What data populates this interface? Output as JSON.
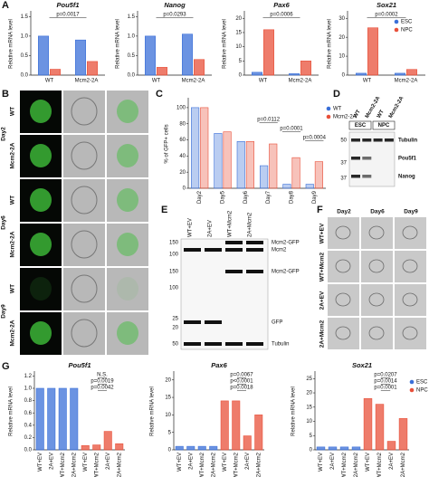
{
  "panels": [
    "A",
    "B",
    "C",
    "D",
    "E",
    "F",
    "G"
  ],
  "chart_data": [
    {
      "type": "bar",
      "title": "Pou5f1",
      "ylabel": "Relative mRNA level",
      "categories": [
        "WT",
        "Mcm2-2A"
      ],
      "series": [
        {
          "color": "#3a6fd8",
          "values": [
            1.0,
            0.9
          ]
        },
        {
          "color": "#e8503a",
          "values": [
            0.15,
            0.35
          ]
        }
      ],
      "ylim": [
        0,
        1.6
      ],
      "yticks": [
        {
          "value": 0,
          "label": "0.0"
        },
        0.5,
        {
          "value": 1,
          "label": "1.0"
        },
        1.5
      ],
      "annotations": [
        "p=0.0017"
      ]
    },
    {
      "type": "bar",
      "title": "Nanog",
      "ylabel": "Relative mRNA level",
      "categories": [
        "WT",
        "Mcm2-2A"
      ],
      "series": [
        {
          "color": "#3a6fd8",
          "values": [
            1.0,
            1.05
          ]
        },
        {
          "color": "#e8503a",
          "values": [
            0.2,
            0.4
          ]
        }
      ],
      "ylim": [
        0,
        1.6
      ],
      "yticks": [
        {
          "value": 0,
          "label": "0.0"
        },
        0.5,
        {
          "value": 1,
          "label": "1.0"
        },
        1.5
      ],
      "annotations": [
        "p=0.0293"
      ]
    },
    {
      "type": "bar",
      "title": "Pax6",
      "ylabel": "Relative mRNA level",
      "categories": [
        "WT",
        "Mcm2-2A"
      ],
      "series": [
        {
          "color": "#3a6fd8",
          "values": [
            1,
            0.5
          ]
        },
        {
          "color": "#e8503a",
          "values": [
            16,
            5
          ]
        }
      ],
      "ylim": [
        0,
        22
      ],
      "yticks": [
        0,
        5,
        10,
        15,
        20
      ],
      "annotations": [
        "p=0.0006"
      ]
    },
    {
      "type": "bar",
      "title": "Sox21",
      "ylabel": "Relative mRNA level",
      "categories": [
        "WT",
        "Mcm2-2A"
      ],
      "series": [
        {
          "name": "ESC",
          "color": "#3a6fd8",
          "values": [
            1,
            1
          ]
        },
        {
          "name": "NPC",
          "color": "#e8503a",
          "values": [
            25,
            3
          ]
        }
      ],
      "ylim": [
        0,
        33
      ],
      "yticks": [
        0,
        10,
        20,
        30
      ],
      "annotations": [
        "p=0.0002"
      ]
    },
    {
      "type": "bar",
      "ylabel": "% of GFP+ cells",
      "categories": [
        "Day2",
        "Day5",
        "Day6",
        "Day7",
        "Day8",
        "Day9"
      ],
      "series": [
        {
          "name": "WT",
          "color": "#3a6fd8",
          "values": [
            100,
            68,
            58,
            28,
            5,
            5
          ]
        },
        {
          "name": "Mcm2-2A",
          "color": "#e8503a",
          "values": [
            100,
            70,
            58,
            55,
            38,
            33
          ]
        }
      ],
      "ylim": [
        0,
        110
      ],
      "yticks": [
        0,
        20,
        40,
        60,
        80,
        100
      ],
      "annotations": [
        "p=0.0112",
        "p=0.0001",
        "p=0.0004"
      ]
    },
    {
      "type": "bar",
      "title": "Pou5f1",
      "ylabel": "Relative mRNA level",
      "categories": [
        "WT+EV",
        "2A+EV",
        "WT+Mcm2",
        "2A+Mcm2",
        "WT+EV",
        "WT+Mcm2",
        "2A+EV",
        "2A+Mcm2"
      ],
      "series": [
        {
          "color": "#3a6fd8",
          "values": [
            1,
            1,
            1,
            1,
            null,
            null,
            null,
            null
          ]
        },
        {
          "color": "#e8503a",
          "values": [
            null,
            null,
            null,
            null,
            0.07,
            0.08,
            0.3,
            0.1
          ]
        }
      ],
      "ylim": [
        0,
        1.25
      ],
      "yticks": [
        {
          "value": 0,
          "label": "0.0"
        },
        0.2,
        0.4,
        0.6,
        0.8,
        {
          "value": 1,
          "label": "1.0"
        },
        1.2
      ],
      "annotations": [
        "N.S.",
        "p=0.0019",
        "p=0.0042"
      ]
    },
    {
      "type": "bar",
      "title": "Pax6",
      "ylabel": "Relative mRNA level",
      "categories": [
        "WT+EV",
        "2A+EV",
        "WT+Mcm2",
        "2A+Mcm2",
        "WT+EV",
        "WT+Mcm2",
        "2A+EV",
        "2A+Mcm2"
      ],
      "series": [
        {
          "color": "#3a6fd8",
          "values": [
            1,
            1,
            1,
            1,
            null,
            null,
            null,
            null
          ]
        },
        {
          "color": "#e8503a",
          "values": [
            null,
            null,
            null,
            null,
            14,
            14,
            4,
            10
          ]
        }
      ],
      "ylim": [
        0,
        22
      ],
      "yticks": [
        0,
        5,
        10,
        15,
        20
      ],
      "annotations": [
        "p=0.0067",
        "p<0.0001",
        "p=0.0018"
      ]
    },
    {
      "type": "bar",
      "title": "Sox21",
      "ylabel": "Relative mRNA level",
      "categories": [
        "WT+EV",
        "2A+EV",
        "WT+Mcm2",
        "2A+Mcm2",
        "WT+EV",
        "WT+Mcm2",
        "2A+EV",
        "2A+Mcm2"
      ],
      "series": [
        {
          "name": "ESC",
          "color": "#3a6fd8",
          "values": [
            1,
            1,
            1,
            1,
            null,
            null,
            null,
            null
          ]
        },
        {
          "name": "NPC",
          "color": "#e8503a",
          "values": [
            null,
            null,
            null,
            null,
            18,
            16,
            3,
            11
          ]
        }
      ],
      "ylim": [
        0,
        27
      ],
      "yticks": [
        0,
        5,
        10,
        15,
        20,
        25
      ],
      "annotations": [
        "p=0.0207",
        "p=0.0014",
        "p=0.0001"
      ]
    }
  ],
  "panel_b": {
    "groups": [
      {
        "day": "Day2",
        "rows": [
          "WT",
          "Mcm2-2A"
        ]
      },
      {
        "day": "Day6",
        "rows": [
          "WT",
          "Mcm2-2A"
        ]
      },
      {
        "day": "Day9",
        "rows": [
          "WT",
          "Mcm2-2A"
        ]
      }
    ]
  },
  "panel_d": {
    "lanes": [
      "WT",
      "Mcm2-2A",
      "WT",
      "Mcm2-2A"
    ],
    "groups": [
      "ESC",
      "NPC"
    ],
    "markers": [
      50,
      37,
      37
    ],
    "bands": [
      "Tubulin",
      "Pou5f1",
      "Nanog"
    ]
  },
  "panel_e": {
    "lanes": [
      "WT+EV",
      "2A+EV",
      "WT+Mcm2",
      "2A+Mcm2"
    ],
    "markers": [
      150,
      100,
      150,
      100,
      25,
      20,
      50
    ],
    "bands": [
      "Mcm2-GFP",
      "Mcm2",
      "Mcm2-GFP",
      "GFP",
      "Tubulin"
    ]
  },
  "panel_f": {
    "columns": [
      "Day2",
      "Day6",
      "Day9"
    ],
    "rows": [
      "WT+EV",
      "WT+Mcm2",
      "2A+EV",
      "2A+Mcm2"
    ]
  }
}
